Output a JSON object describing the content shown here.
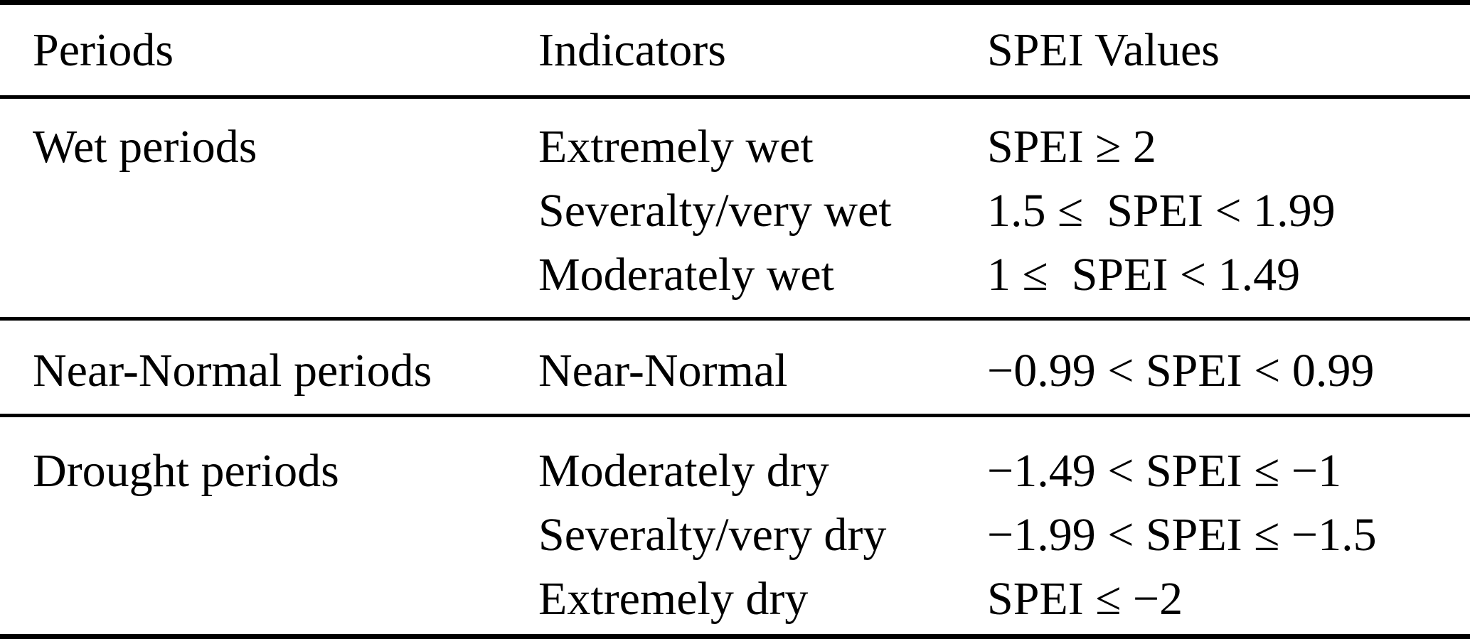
{
  "table": {
    "columns": {
      "periods": "Periods",
      "indicators": "Indicators",
      "spei_values": "SPEI Values"
    },
    "sections": [
      {
        "period": "Wet periods",
        "rows": [
          {
            "indicator": "Extremely wet",
            "value": "SPEI ≥ 2"
          },
          {
            "indicator": "Severalty/very wet",
            "value": "1.5 ≤  SPEI < 1.99"
          },
          {
            "indicator": "Moderately wet",
            "value": "1 ≤  SPEI < 1.49"
          }
        ]
      },
      {
        "period": "Near-Normal periods",
        "rows": [
          {
            "indicator": "Near-Normal",
            "value": "−0.99 < SPEI < 0.99"
          }
        ]
      },
      {
        "period": "Drought periods",
        "rows": [
          {
            "indicator": "Moderately dry",
            "value": "−1.49 < SPEI ≤ −1"
          },
          {
            "indicator": "Severalty/very dry",
            "value": "−1.99 < SPEI ≤ −1.5"
          },
          {
            "indicator": "Extremely dry",
            "value": "SPEI ≤ −2"
          }
        ]
      }
    ],
    "colors": {
      "text": "#000000",
      "background": "#ffffff",
      "rule": "#000000"
    }
  }
}
